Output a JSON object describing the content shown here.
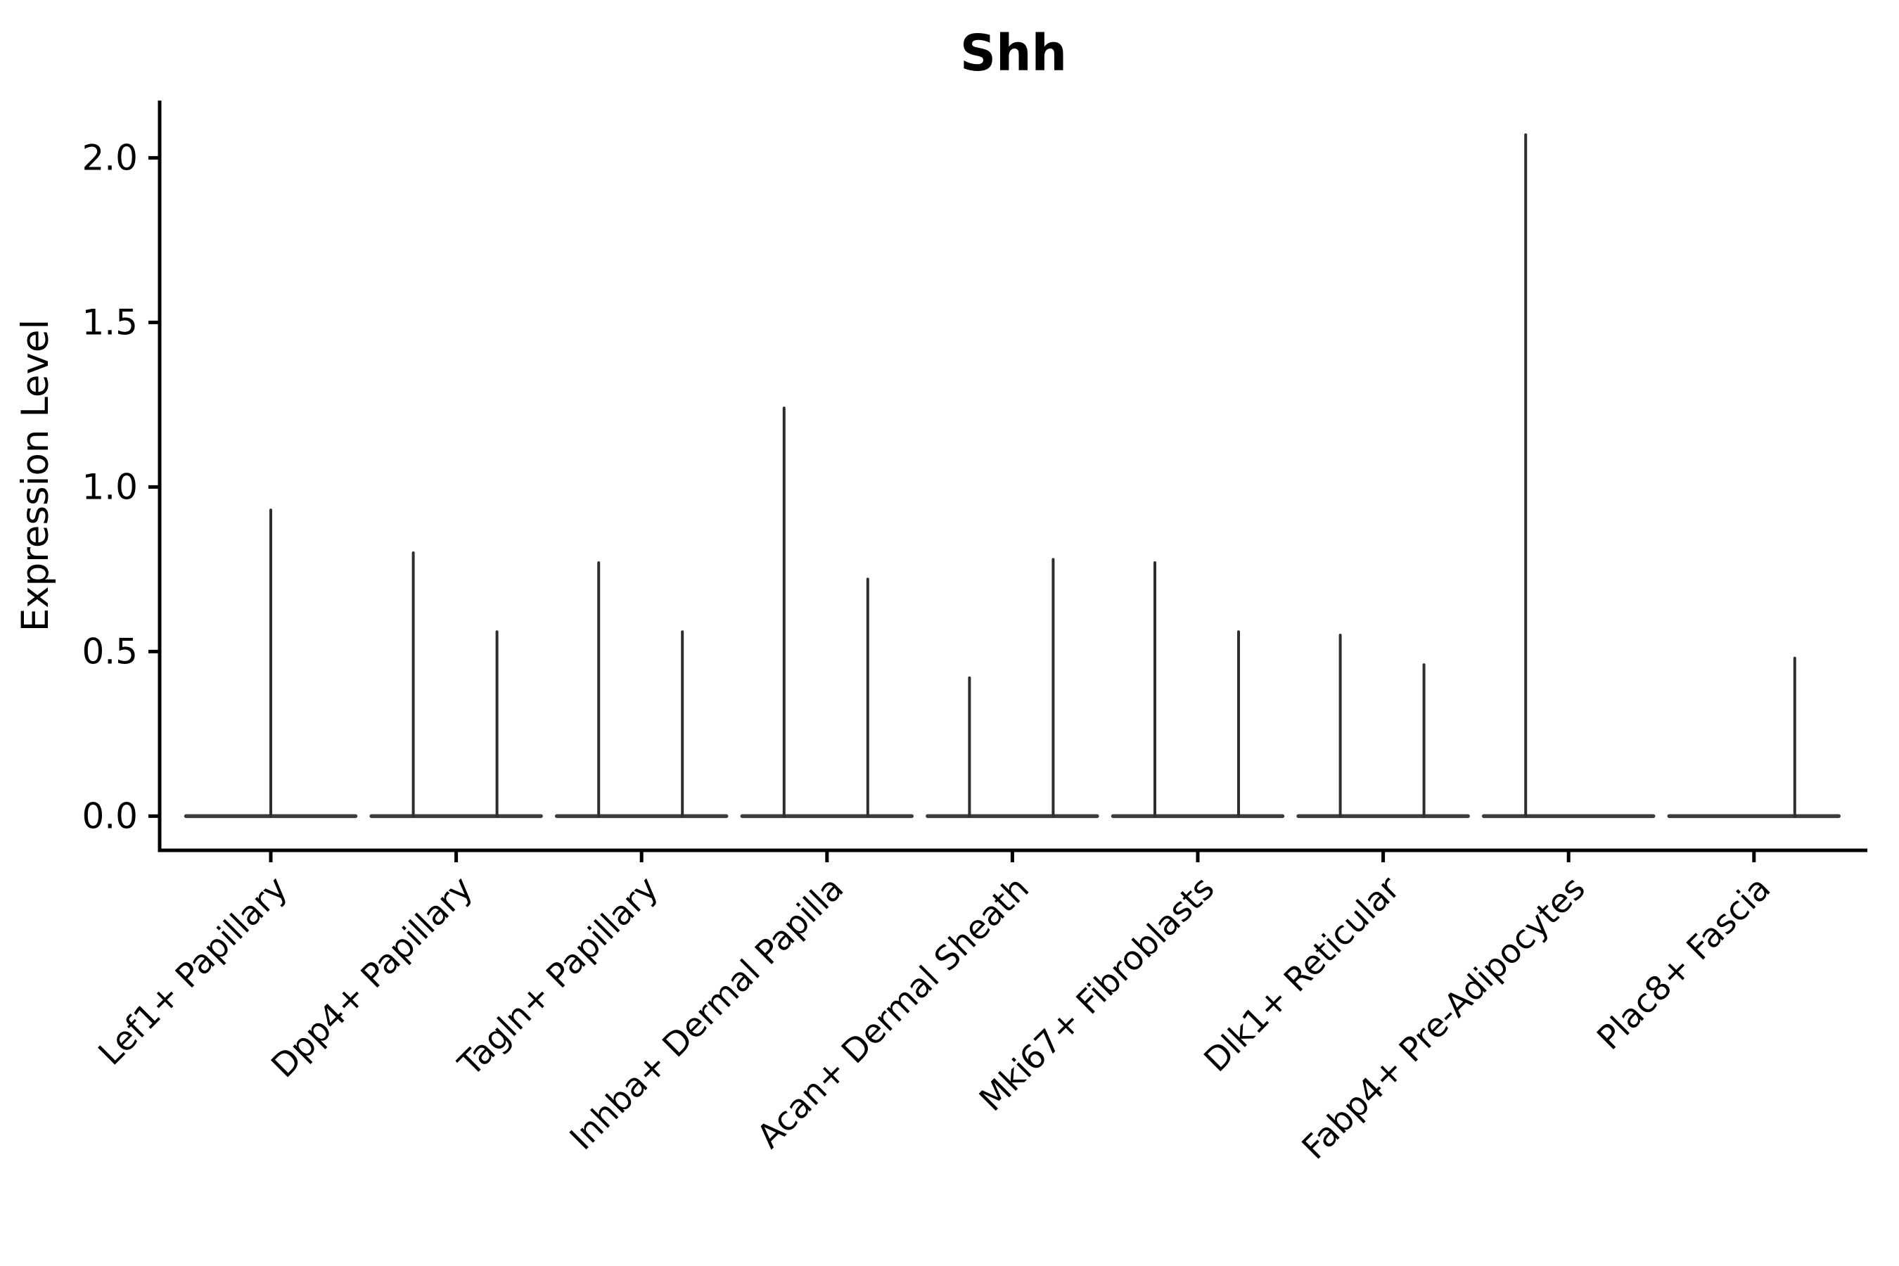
{
  "chart_data": {
    "type": "violin",
    "title": "Shh",
    "ylabel": "Expression Level",
    "xlabel": "",
    "yticks": [
      {
        "label": "0.0",
        "value": 0.0
      },
      {
        "label": "0.5",
        "value": 0.5
      },
      {
        "label": "1.0",
        "value": 1.0
      },
      {
        "label": "1.5",
        "value": 1.5
      },
      {
        "label": "2.0",
        "value": 2.0
      }
    ],
    "ylim": [
      -0.104,
      2.174
    ],
    "grid": false,
    "legend": "none",
    "categories": [
      "Lef1+ Papillary",
      "Dpp4+ Papillary",
      "Tagln+ Papillary",
      "Inhba+ Dermal Papilla",
      "Acan+ Dermal Sheath",
      "Mki67+ Fibroblasts",
      "Dlk1+ Reticular",
      "Fabp4+ Pre-Adipocytes",
      "Plac8+ Fascia"
    ],
    "violins": [
      {
        "category": "Lef1+ Papillary",
        "baseline_value": 0,
        "spikes": [
          {
            "position": "center",
            "max": 0.93
          }
        ]
      },
      {
        "category": "Dpp4+ Papillary",
        "baseline_value": 0,
        "spikes": [
          {
            "position": "left",
            "max": 0.8
          },
          {
            "position": "right",
            "max": 0.56
          }
        ]
      },
      {
        "category": "Tagln+ Papillary",
        "baseline_value": 0,
        "spikes": [
          {
            "position": "left",
            "max": 0.77
          },
          {
            "position": "right",
            "max": 0.56
          }
        ]
      },
      {
        "category": "Inhba+ Dermal Papilla",
        "baseline_value": 0,
        "spikes": [
          {
            "position": "left",
            "max": 1.24
          },
          {
            "position": "right",
            "max": 0.72
          }
        ]
      },
      {
        "category": "Acan+ Dermal Sheath",
        "baseline_value": 0,
        "spikes": [
          {
            "position": "left",
            "max": 0.42
          },
          {
            "position": "right",
            "max": 0.78
          }
        ]
      },
      {
        "category": "Mki67+ Fibroblasts",
        "baseline_value": 0,
        "spikes": [
          {
            "position": "left",
            "max": 0.77
          },
          {
            "position": "right",
            "max": 0.56
          }
        ]
      },
      {
        "category": "Dlk1+ Reticular",
        "baseline_value": 0,
        "spikes": [
          {
            "position": "left",
            "max": 0.55
          },
          {
            "position": "right",
            "max": 0.46
          }
        ]
      },
      {
        "category": "Fabp4+ Pre-Adipocytes",
        "baseline_value": 0,
        "spikes": [
          {
            "position": "left",
            "max": 2.07
          }
        ]
      },
      {
        "category": "Plac8+ Fascia",
        "baseline_value": 0,
        "spikes": [
          {
            "position": "right",
            "max": 0.48
          }
        ]
      }
    ],
    "colors": {
      "background": "#ffffff",
      "axis": "#000000",
      "text": "#000000",
      "violin_line": "#2e2e2e",
      "violin_baseline": "#3c3c3c"
    }
  }
}
